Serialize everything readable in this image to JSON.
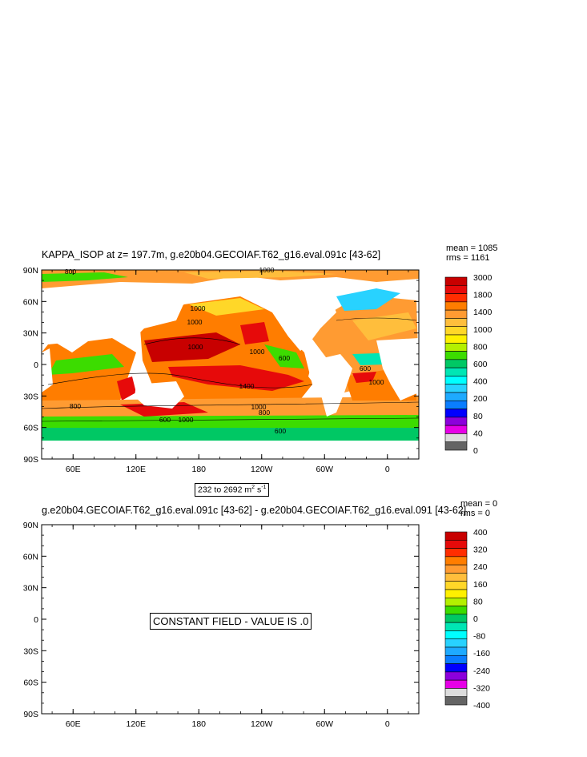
{
  "chart_data": [
    {
      "type": "heatmap",
      "title": "KAPPA_ISOP at z= 197.7m, g.e20b04.GECOIAF.T62_g16.eval.091c [43-62]",
      "stats": {
        "mean": "mean = 1085",
        "rms": "rms = 1161"
      },
      "xticks": [
        "60E",
        "120E",
        "180",
        "120W",
        "60W",
        "0"
      ],
      "yticks": [
        "90N",
        "60N",
        "30N",
        "0",
        "30S",
        "60S",
        "90S"
      ],
      "range_note": "232 to 2692 m",
      "range_sup1": "2",
      "range_mid": " s",
      "range_sup2": "-1",
      "colorbar": {
        "labels": [
          "3000",
          "1800",
          "1400",
          "1000",
          "800",
          "600",
          "400",
          "200",
          "80",
          "40",
          "0"
        ],
        "colors": [
          "#c80000",
          "#e60a0a",
          "#ff2d00",
          "#ff7d00",
          "#ff9b32",
          "#ffbe3c",
          "#ffd728",
          "#fff000",
          "#b4f000",
          "#3cdc00",
          "#00c864",
          "#00e6b4",
          "#00ffff",
          "#28d2ff",
          "#1eaaff",
          "#0a7dff",
          "#0000ff",
          "#8c00dc",
          "#e600e6",
          "#dcdcdc",
          "#646464"
        ]
      },
      "contour_labels": [
        "800",
        "1000",
        "1000",
        "1000",
        "1000",
        "1000",
        "1400",
        "600",
        "600",
        "1000",
        "800",
        "1000",
        "600",
        "1000",
        "800",
        "600"
      ]
    },
    {
      "type": "heatmap",
      "title": "g.e20b04.GECOIAF.T62_g16.eval.091c [43-62] - g.e20b04.GECOIAF.T62_g16.eval.091 [43-62]",
      "stats": {
        "mean": "mean = 0",
        "rms": "rms = 0"
      },
      "xticks": [
        "60E",
        "120E",
        "180",
        "120W",
        "60W",
        "0"
      ],
      "yticks": [
        "90N",
        "60N",
        "30N",
        "0",
        "30S",
        "60S",
        "90S"
      ],
      "note": "CONSTANT FIELD - VALUE IS .0",
      "colorbar": {
        "labels": [
          "400",
          "320",
          "240",
          "160",
          "80",
          "0",
          "-80",
          "-160",
          "-240",
          "-320",
          "-400"
        ],
        "colors": [
          "#c80000",
          "#e60a0a",
          "#ff2d00",
          "#ff7d00",
          "#ff9b32",
          "#ffbe3c",
          "#ffd728",
          "#fff000",
          "#b4f000",
          "#3cdc00",
          "#00c864",
          "#00e6b4",
          "#00ffff",
          "#28d2ff",
          "#1eaaff",
          "#0a7dff",
          "#0000ff",
          "#8c00dc",
          "#e600e6",
          "#dcdcdc",
          "#646464"
        ]
      }
    }
  ]
}
